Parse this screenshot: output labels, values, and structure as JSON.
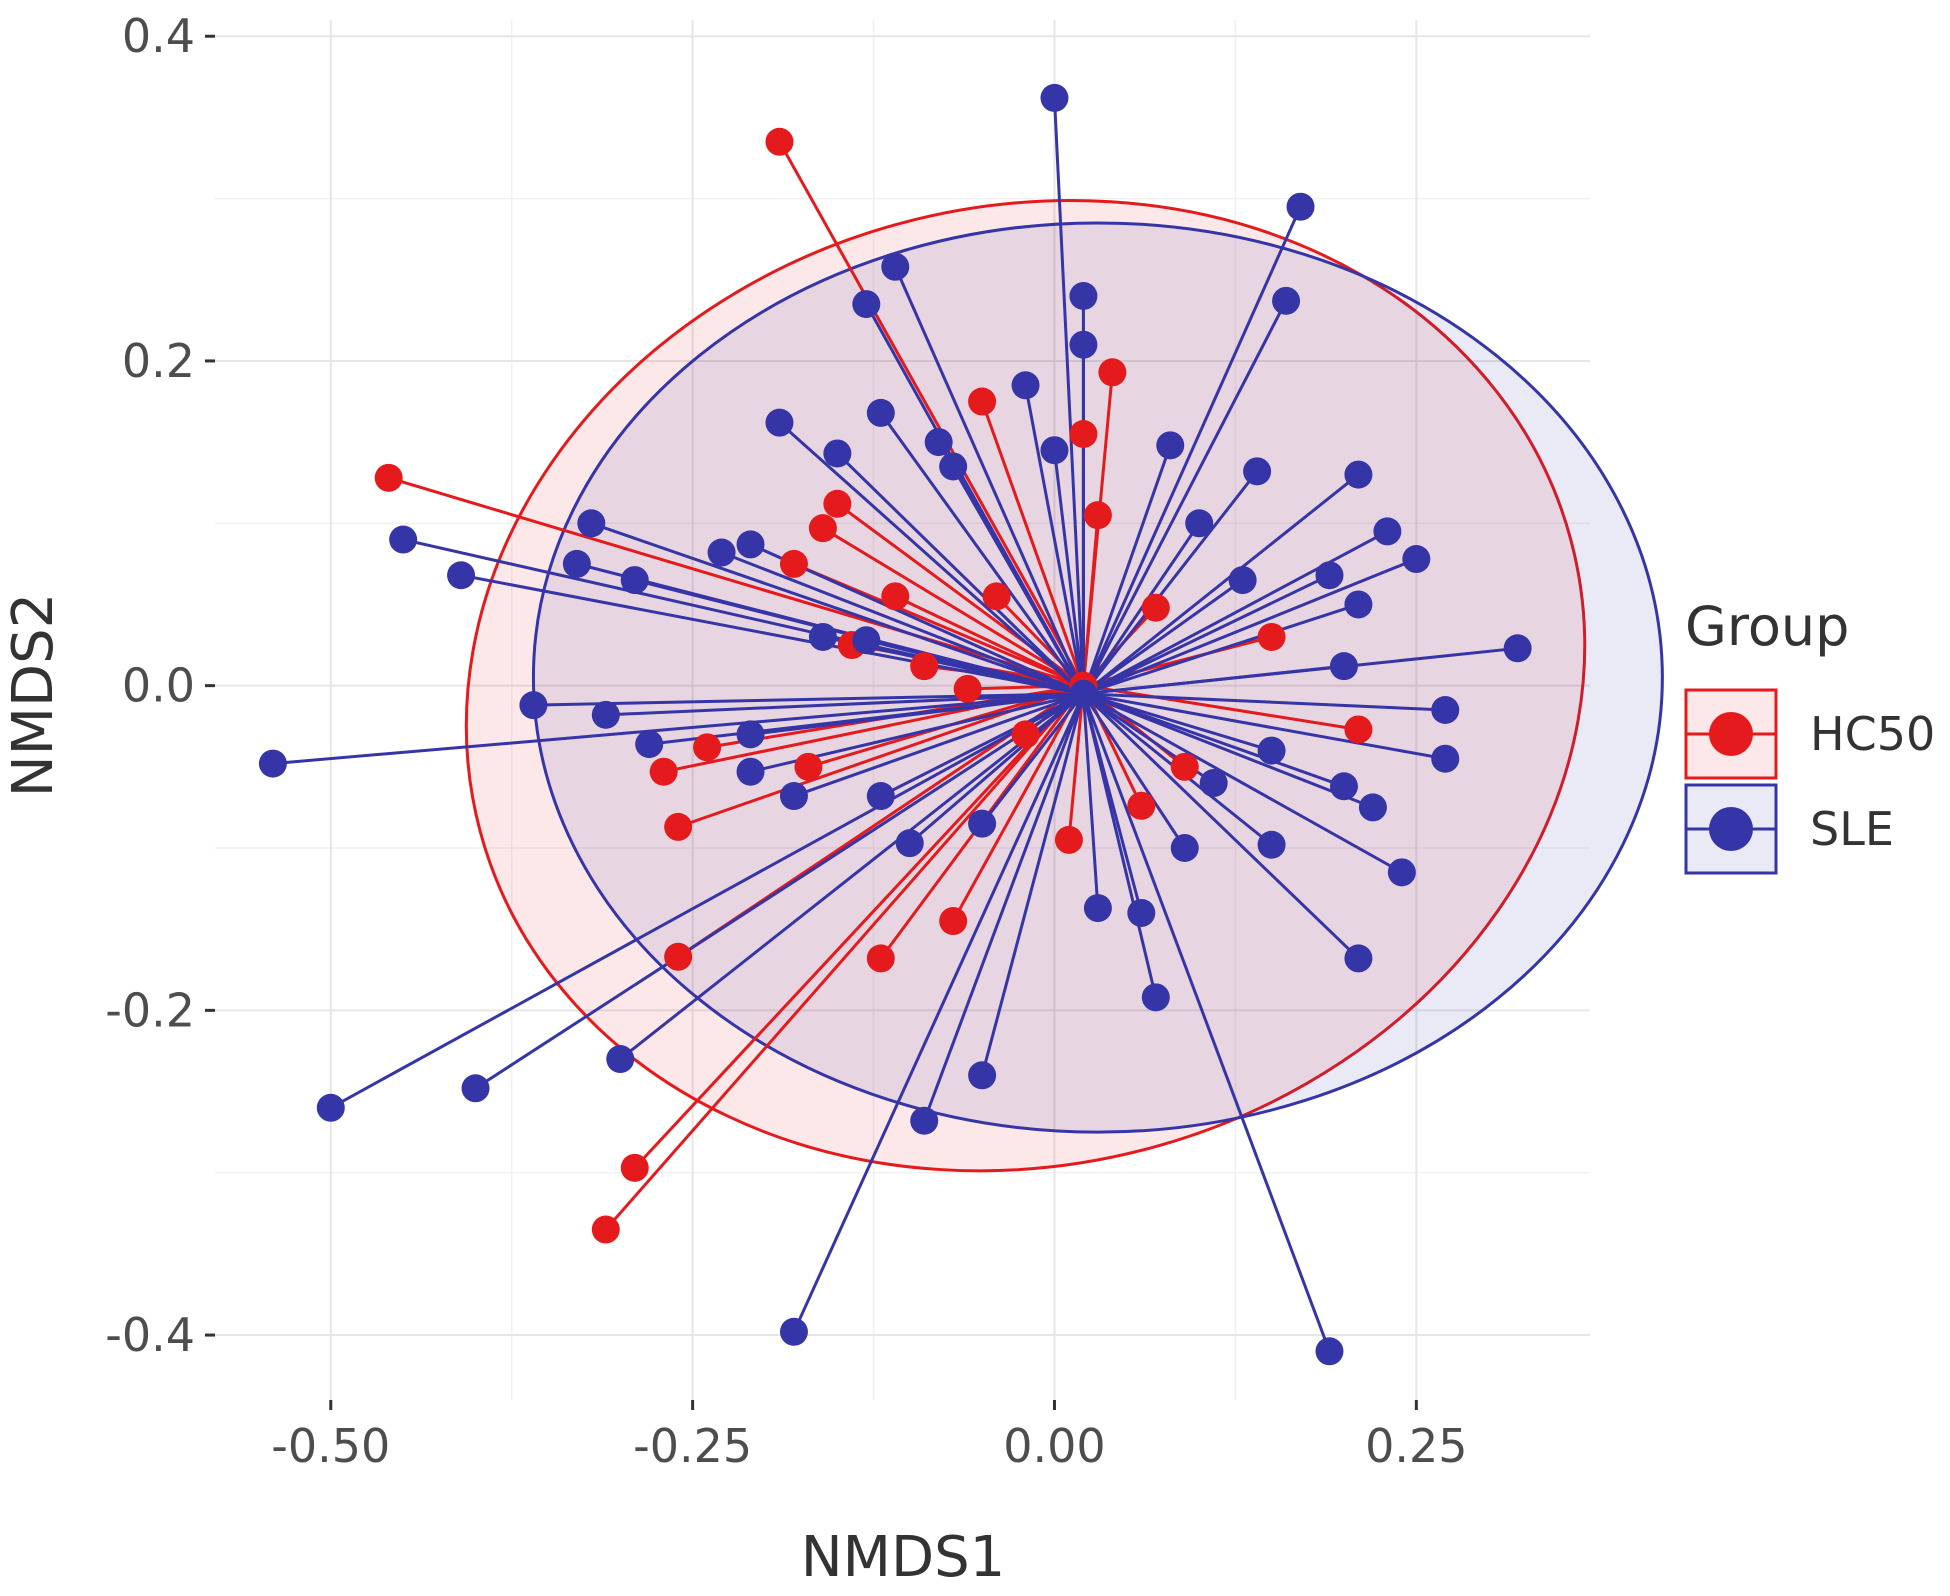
{
  "chart_data": {
    "type": "scatter",
    "xlabel": "NMDS1",
    "ylabel": "NMDS2",
    "xlim": [
      -0.58,
      0.37
    ],
    "ylim": [
      -0.44,
      0.41
    ],
    "x_ticks": [
      "-0.50",
      "-0.25",
      "0.00",
      "0.25"
    ],
    "x_tick_values": [
      -0.5,
      -0.25,
      0.0,
      0.25
    ],
    "y_ticks": [
      "-0.4",
      "-0.2",
      "0.0",
      "0.2",
      "0.4"
    ],
    "y_tick_values": [
      -0.4,
      -0.2,
      0.0,
      0.2,
      0.4
    ],
    "grid": true,
    "legend": {
      "title": "Group",
      "position": "right"
    },
    "series": [
      {
        "name": "HC50",
        "color": "#e41a1c",
        "centroid": [
          0.02,
          0.0
        ],
        "ellipse": {
          "center": [
            -0.02,
            0.0
          ],
          "rx": 0.39,
          "ry": 0.295,
          "rotation_deg": -15
        },
        "points": [
          [
            -0.19,
            0.335
          ],
          [
            -0.46,
            0.128
          ],
          [
            -0.31,
            -0.335
          ],
          [
            -0.29,
            -0.297
          ],
          [
            -0.26,
            -0.167
          ],
          [
            -0.26,
            -0.087
          ],
          [
            -0.27,
            -0.053
          ],
          [
            -0.24,
            -0.038
          ],
          [
            -0.12,
            -0.168
          ],
          [
            -0.07,
            -0.145
          ],
          [
            -0.05,
            0.175
          ],
          [
            0.04,
            0.193
          ],
          [
            -0.15,
            0.112
          ],
          [
            -0.16,
            0.097
          ],
          [
            -0.18,
            0.075
          ],
          [
            -0.11,
            0.055
          ],
          [
            -0.14,
            0.025
          ],
          [
            -0.09,
            0.012
          ],
          [
            -0.06,
            -0.002
          ],
          [
            -0.17,
            -0.05
          ],
          [
            0.01,
            -0.095
          ],
          [
            0.06,
            -0.074
          ],
          [
            0.21,
            -0.027
          ],
          [
            0.02,
            0.155
          ],
          [
            0.03,
            0.105
          ],
          [
            0.07,
            0.048
          ],
          [
            -0.04,
            0.055
          ],
          [
            -0.02,
            -0.03
          ],
          [
            0.09,
            -0.05
          ],
          [
            0.15,
            0.03
          ]
        ]
      },
      {
        "name": "SLE",
        "color": "#3535a8",
        "centroid": [
          0.02,
          -0.005
        ],
        "ellipse": {
          "center": [
            0.03,
            0.005
          ],
          "rx": 0.39,
          "ry": 0.28,
          "rotation_deg": 0
        },
        "points": [
          [
            0.0,
            0.362
          ],
          [
            0.17,
            0.295
          ],
          [
            0.16,
            0.237
          ],
          [
            -0.11,
            0.258
          ],
          [
            0.02,
            0.24
          ],
          [
            0.02,
            0.21
          ],
          [
            -0.13,
            0.235
          ],
          [
            -0.02,
            0.185
          ],
          [
            -0.19,
            0.162
          ],
          [
            -0.12,
            0.168
          ],
          [
            -0.15,
            0.143
          ],
          [
            -0.08,
            0.15
          ],
          [
            -0.07,
            0.135
          ],
          [
            0.0,
            0.145
          ],
          [
            0.08,
            0.148
          ],
          [
            0.14,
            0.132
          ],
          [
            0.21,
            0.13
          ],
          [
            -0.45,
            0.09
          ],
          [
            -0.41,
            0.068
          ],
          [
            -0.32,
            0.1
          ],
          [
            -0.33,
            0.075
          ],
          [
            -0.29,
            0.065
          ],
          [
            -0.23,
            0.082
          ],
          [
            -0.21,
            0.087
          ],
          [
            0.1,
            0.1
          ],
          [
            0.23,
            0.095
          ],
          [
            0.25,
            0.078
          ],
          [
            0.19,
            0.068
          ],
          [
            0.13,
            0.065
          ],
          [
            0.21,
            0.05
          ],
          [
            0.32,
            0.023
          ],
          [
            0.2,
            0.012
          ],
          [
            -0.16,
            0.03
          ],
          [
            -0.13,
            0.028
          ],
          [
            -0.36,
            -0.012
          ],
          [
            -0.31,
            -0.018
          ],
          [
            -0.28,
            -0.036
          ],
          [
            -0.21,
            -0.03
          ],
          [
            -0.5,
            -0.26
          ],
          [
            -0.4,
            -0.248
          ],
          [
            -0.3,
            -0.23
          ],
          [
            -0.54,
            -0.048
          ],
          [
            -0.21,
            -0.053
          ],
          [
            -0.18,
            -0.068
          ],
          [
            -0.12,
            -0.068
          ],
          [
            -0.1,
            -0.097
          ],
          [
            -0.05,
            -0.085
          ],
          [
            -0.05,
            -0.24
          ],
          [
            -0.09,
            -0.268
          ],
          [
            -0.18,
            -0.398
          ],
          [
            0.19,
            -0.41
          ],
          [
            0.07,
            -0.192
          ],
          [
            0.03,
            -0.137
          ],
          [
            0.06,
            -0.14
          ],
          [
            0.09,
            -0.1
          ],
          [
            0.15,
            -0.098
          ],
          [
            0.21,
            -0.168
          ],
          [
            0.24,
            -0.115
          ],
          [
            0.27,
            -0.045
          ],
          [
            0.27,
            -0.015
          ],
          [
            0.22,
            -0.075
          ],
          [
            0.2,
            -0.062
          ],
          [
            0.15,
            -0.04
          ],
          [
            0.11,
            -0.06
          ]
        ]
      }
    ]
  }
}
